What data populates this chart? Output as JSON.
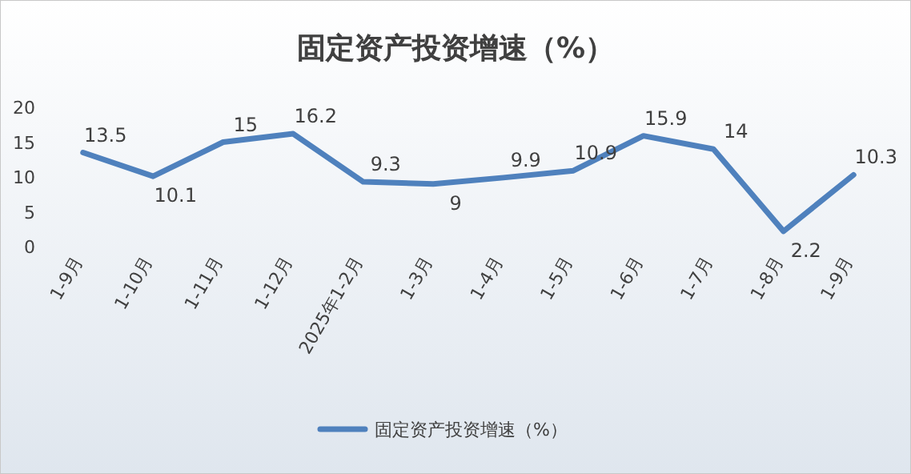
{
  "chart_data": {
    "type": "line",
    "title": "固定资产投资增速（%）",
    "categories": [
      "1-9月",
      "1-10月",
      "1-11月",
      "1-12月",
      "2025年1-2月",
      "1-3月",
      "1-4月",
      "1-5月",
      "1-6月",
      "1-7月",
      "1-8月",
      "1-9月"
    ],
    "series": [
      {
        "name": "固定资产投资增速（%）",
        "color": "#4f81bd",
        "values": [
          13.5,
          10.1,
          15,
          16.2,
          9.3,
          9,
          9.9,
          10.9,
          15.9,
          14,
          2.2,
          10.3
        ]
      }
    ],
    "ylim": [
      0,
      20
    ],
    "yticks": [
      0,
      5,
      10,
      15,
      20
    ],
    "data_labels": true,
    "grid": false,
    "legend": "bottom",
    "marker": "none",
    "line_style": "solid"
  }
}
